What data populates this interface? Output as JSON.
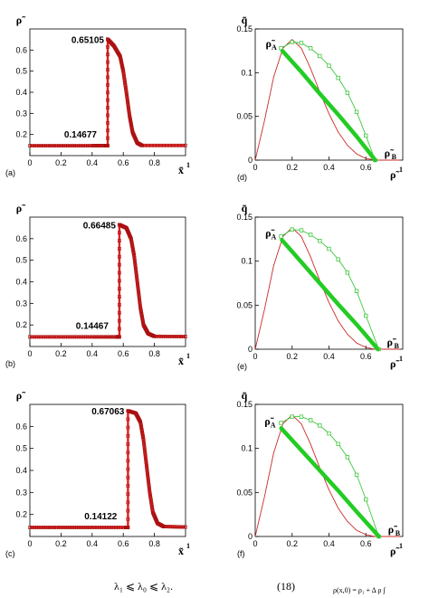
{
  "chart_data": [
    {
      "type": "line",
      "panel": "(a)",
      "y_var": "ρ̃",
      "x_var": "x̃",
      "x_var_sup": "1",
      "xlim": [
        0,
        1
      ],
      "ylim": [
        0.1,
        0.7
      ],
      "xticks": [
        "0",
        "0.2",
        "0.4",
        "0.6",
        "0.8"
      ],
      "yticks": [
        "0.2",
        "0.3",
        "0.4",
        "0.5",
        "0.6"
      ],
      "value_high": "0.65105",
      "value_low": "0.14677",
      "series": [
        {
          "x": [
            0.0,
            0.2,
            0.4,
            0.485,
            0.5,
            0.5,
            0.54,
            0.58,
            0.6,
            0.62,
            0.64,
            0.66,
            0.69,
            0.72,
            1.0
          ],
          "y": [
            0.14677,
            0.14677,
            0.14677,
            0.14677,
            0.14677,
            0.65105,
            0.62,
            0.57,
            0.5,
            0.4,
            0.29,
            0.21,
            0.16,
            0.148,
            0.148
          ]
        }
      ]
    },
    {
      "type": "line",
      "panel": "(b)",
      "y_var": "ρ̃",
      "x_var": "x̃",
      "x_var_sup": "1",
      "xlim": [
        0,
        1
      ],
      "ylim": [
        0.1,
        0.7
      ],
      "xticks": [
        "0",
        "0.2",
        "0.4",
        "0.6",
        "0.8"
      ],
      "yticks": [
        "0.2",
        "0.3",
        "0.4",
        "0.5",
        "0.6"
      ],
      "value_high": "0.66485",
      "value_low": "0.14467",
      "series": [
        {
          "x": [
            0.0,
            0.2,
            0.4,
            0.56,
            0.575,
            0.575,
            0.62,
            0.65,
            0.67,
            0.69,
            0.71,
            0.73,
            0.76,
            0.8,
            1.0
          ],
          "y": [
            0.14467,
            0.14467,
            0.14467,
            0.14467,
            0.14467,
            0.66485,
            0.65,
            0.6,
            0.52,
            0.4,
            0.28,
            0.2,
            0.16,
            0.147,
            0.146
          ]
        }
      ]
    },
    {
      "type": "line",
      "panel": "(c)",
      "y_var": "ρ̃",
      "x_var": "x̃",
      "x_var_sup": "1",
      "xlim": [
        0,
        1
      ],
      "ylim": [
        0.1,
        0.7
      ],
      "xticks": [
        "0",
        "0.2",
        "0.4",
        "0.6",
        "0.8"
      ],
      "yticks": [
        "0.2",
        "0.3",
        "0.4",
        "0.5",
        "0.6"
      ],
      "value_high": "0.67063",
      "value_low": "0.14122",
      "series": [
        {
          "x": [
            0.0,
            0.2,
            0.4,
            0.615,
            0.63,
            0.63,
            0.68,
            0.71,
            0.73,
            0.75,
            0.77,
            0.79,
            0.82,
            0.86,
            1.0
          ],
          "y": [
            0.14122,
            0.14122,
            0.14122,
            0.14122,
            0.14122,
            0.67063,
            0.66,
            0.62,
            0.54,
            0.42,
            0.3,
            0.21,
            0.16,
            0.145,
            0.143
          ]
        }
      ]
    },
    {
      "type": "line",
      "panel": "(d)",
      "y_var": "q̃",
      "x_var": "ρ̃",
      "x_var_sup": "1",
      "label_a": "ρ̃",
      "label_a_sub": "A",
      "label_b": "ρ̃",
      "label_b_sub": "B",
      "xlim": [
        0,
        0.8
      ],
      "ylim": [
        0,
        0.15
      ],
      "xticks": [
        "0",
        "0.2",
        "0.4",
        "0.6"
      ],
      "yticks": [
        "0",
        "0.05",
        "0.1",
        "0.15"
      ],
      "point_a": [
        0.147,
        0.125
      ],
      "point_b": [
        0.651,
        0.0
      ],
      "series": [
        {
          "name": "",
          "color": "#cc2a2a",
          "x": [
            0,
            0.05,
            0.1,
            0.15,
            0.2,
            0.25,
            0.3,
            0.35,
            0.4,
            0.45,
            0.5,
            0.55,
            0.6,
            0.65,
            0.7,
            0.8
          ],
          "y": [
            0,
            0.045,
            0.095,
            0.128,
            0.138,
            0.128,
            0.105,
            0.078,
            0.053,
            0.032,
            0.017,
            0.007,
            0.002,
            0.0,
            0.0,
            0.0
          ]
        },
        {
          "name": "",
          "color": "#3ec83e",
          "x": [
            0.14,
            0.2,
            0.25,
            0.3,
            0.35,
            0.4,
            0.45,
            0.5,
            0.55,
            0.6,
            0.65
          ],
          "y": [
            0.128,
            0.135,
            0.134,
            0.128,
            0.119,
            0.108,
            0.094,
            0.077,
            0.055,
            0.028,
            0.0
          ]
        },
        {
          "name": "",
          "color": "#22cc22",
          "thick": true,
          "x": [
            0.147,
            0.25,
            0.35,
            0.45,
            0.55,
            0.651
          ],
          "y": [
            0.125,
            0.101,
            0.076,
            0.052,
            0.027,
            0.0
          ]
        }
      ]
    },
    {
      "type": "line",
      "panel": "(e)",
      "y_var": "q̃",
      "x_var": "ρ̃",
      "x_var_sup": "1",
      "label_a": "ρ̃",
      "label_a_sub": "A",
      "label_b": "ρ̃",
      "label_b_sub": "B",
      "xlim": [
        0,
        0.8
      ],
      "ylim": [
        0,
        0.15
      ],
      "xticks": [
        "0",
        "0.2",
        "0.4",
        "0.6"
      ],
      "yticks": [
        "0",
        "0.05",
        "0.1",
        "0.15"
      ],
      "point_a": [
        0.145,
        0.124
      ],
      "point_b": [
        0.665,
        0.0
      ],
      "series": [
        {
          "name": "",
          "color": "#cc2a2a",
          "x": [
            0,
            0.05,
            0.1,
            0.15,
            0.2,
            0.25,
            0.3,
            0.35,
            0.4,
            0.45,
            0.5,
            0.55,
            0.6,
            0.65,
            0.7,
            0.8
          ],
          "y": [
            0,
            0.045,
            0.095,
            0.128,
            0.138,
            0.128,
            0.105,
            0.078,
            0.053,
            0.032,
            0.017,
            0.007,
            0.002,
            0.0,
            0.0,
            0.0
          ]
        },
        {
          "name": "",
          "color": "#3ec83e",
          "x": [
            0.14,
            0.2,
            0.25,
            0.3,
            0.35,
            0.4,
            0.45,
            0.5,
            0.55,
            0.6,
            0.67
          ],
          "y": [
            0.128,
            0.136,
            0.135,
            0.13,
            0.123,
            0.114,
            0.102,
            0.087,
            0.066,
            0.038,
            0.0
          ]
        },
        {
          "name": "",
          "color": "#22cc22",
          "thick": true,
          "x": [
            0.145,
            0.25,
            0.35,
            0.45,
            0.55,
            0.665
          ],
          "y": [
            0.124,
            0.099,
            0.075,
            0.051,
            0.028,
            0.0
          ]
        }
      ]
    },
    {
      "type": "line",
      "panel": "(f)",
      "y_var": "q̃",
      "x_var": "ρ̃",
      "x_var_sup": "1",
      "label_a": "ρ̃",
      "label_a_sub": "A",
      "label_b": "ρ̃",
      "label_b_sub": "B",
      "xlim": [
        0,
        0.8
      ],
      "ylim": [
        0,
        0.15
      ],
      "xticks": [
        "0",
        "0.2",
        "0.4",
        "0.6"
      ],
      "yticks": [
        "0",
        "0.05",
        "0.1",
        "0.15"
      ],
      "point_a": [
        0.141,
        0.123
      ],
      "point_b": [
        0.671,
        0.0
      ],
      "series": [
        {
          "name": "",
          "color": "#cc2a2a",
          "x": [
            0,
            0.05,
            0.1,
            0.15,
            0.2,
            0.25,
            0.3,
            0.35,
            0.4,
            0.45,
            0.5,
            0.55,
            0.6,
            0.65,
            0.7,
            0.8
          ],
          "y": [
            0,
            0.045,
            0.095,
            0.128,
            0.138,
            0.128,
            0.105,
            0.078,
            0.053,
            0.032,
            0.017,
            0.007,
            0.002,
            0.0,
            0.0,
            0.0
          ]
        },
        {
          "name": "",
          "color": "#3ec83e",
          "x": [
            0.14,
            0.2,
            0.25,
            0.3,
            0.35,
            0.4,
            0.45,
            0.5,
            0.55,
            0.6,
            0.67
          ],
          "y": [
            0.129,
            0.136,
            0.136,
            0.132,
            0.126,
            0.117,
            0.105,
            0.09,
            0.07,
            0.042,
            0.0
          ]
        },
        {
          "name": "",
          "color": "#22cc22",
          "thick": true,
          "x": [
            0.141,
            0.25,
            0.35,
            0.45,
            0.55,
            0.671
          ],
          "y": [
            0.123,
            0.098,
            0.075,
            0.052,
            0.028,
            0.0
          ]
        }
      ]
    }
  ],
  "colors": {
    "profile": "#dd2222",
    "marker_edge": "#aa1111"
  },
  "footer": {
    "equation_left": "λ₁ ⩽ λ₀ ⩽ λ₂.",
    "equation_number": "(18)",
    "equation_right": "ρ(x,0) = ρ₁ + Δ ρ ∫"
  }
}
